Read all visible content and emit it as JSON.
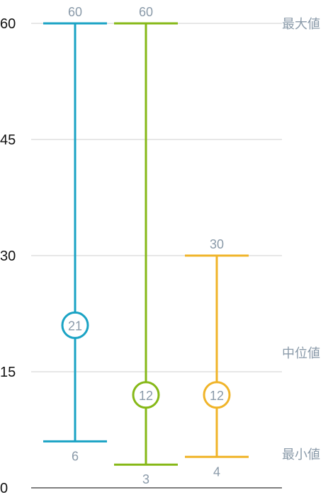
{
  "chart_data": {
    "type": "range",
    "ylim": [
      0,
      60
    ],
    "y_ticks": [
      "0",
      "15",
      "30",
      "45",
      "60"
    ],
    "grid": true,
    "legend_labels": {
      "max": "最大値",
      "median": "中位値",
      "min": "最小値"
    },
    "series": [
      {
        "max": 60,
        "median": 21,
        "min": 6,
        "color": "#1aa3c4"
      },
      {
        "max": 60,
        "median": 12,
        "min": 3,
        "color": "#86b817"
      },
      {
        "max": 30,
        "median": 12,
        "min": 4,
        "color": "#f0b429"
      }
    ]
  },
  "colors": {
    "grid": "#cfcfcf",
    "axis": "#555555",
    "label_text": "#8a9aa9",
    "tick_text": "#111111"
  }
}
